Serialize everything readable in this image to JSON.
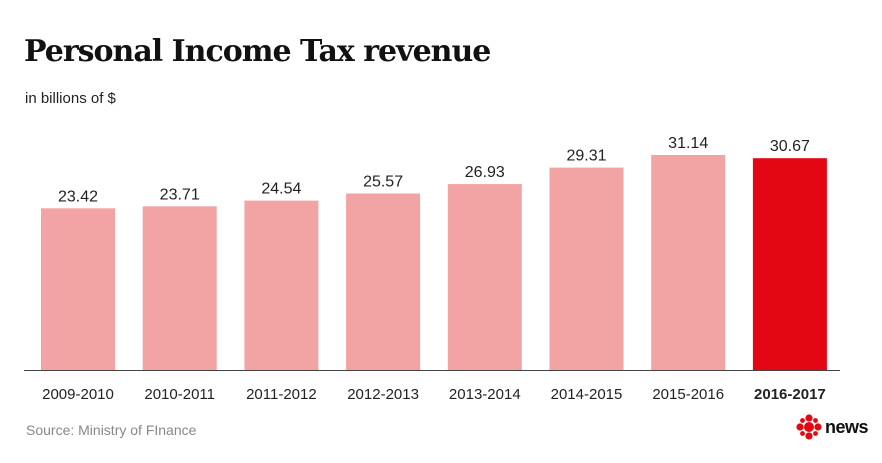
{
  "header": {
    "title": "Personal Income Tax revenue",
    "subtitle": "in billions of $"
  },
  "footer": {
    "source": "Source: Ministry of FInance",
    "logo_text": "news"
  },
  "colors": {
    "bar": "#f2a3a3",
    "highlight_bar": "#e30613",
    "axis": "#444444",
    "text": "#222222"
  },
  "chart_data": {
    "type": "bar",
    "title": "Personal Income Tax revenue",
    "subtitle": "in billions of $",
    "categories": [
      "2009-2010",
      "2010-2011",
      "2011-2012",
      "2012-2013",
      "2013-2014",
      "2014-2015",
      "2015-2016",
      "2016-2017"
    ],
    "values": [
      23.42,
      23.71,
      24.54,
      25.57,
      26.93,
      29.31,
      31.14,
      30.67
    ],
    "data_labels": [
      "23.42",
      "23.71",
      "24.54",
      "25.57",
      "26.93",
      "29.31",
      "31.14",
      "30.67"
    ],
    "highlight_index": 7,
    "xlabel": "",
    "ylabel": "",
    "ylim": [
      0,
      31.14
    ],
    "grid": false,
    "legend": "none"
  }
}
